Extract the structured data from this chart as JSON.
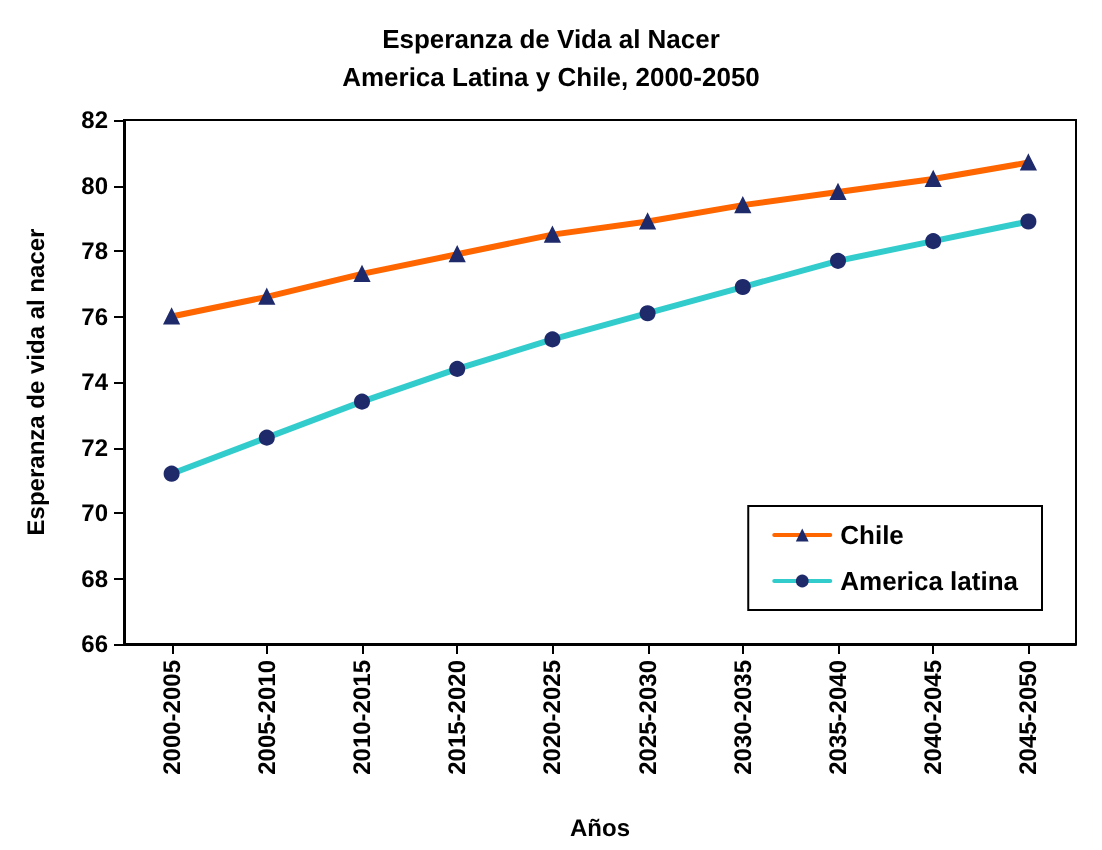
{
  "chart_data": {
    "type": "line",
    "title": "Esperanza de Vida al Nacer",
    "subtitle": "America Latina y Chile, 2000-2050",
    "xlabel": "Años",
    "ylabel": "Esperanza de vida al nacer",
    "categories": [
      "2000-2005",
      "2005-2010",
      "2010-2015",
      "2015-2020",
      "2020-2025",
      "2025-2030",
      "2030-2035",
      "2035-2040",
      "2040-2045",
      "2045-2050"
    ],
    "series": [
      {
        "name": "Chile",
        "color": "#ff6600",
        "marker": "triangle",
        "values": [
          76.0,
          76.6,
          77.3,
          77.9,
          78.5,
          78.9,
          79.4,
          79.8,
          80.2,
          80.7
        ]
      },
      {
        "name": "America latina",
        "color": "#33cccc",
        "marker": "circle",
        "values": [
          71.2,
          72.3,
          73.4,
          74.4,
          75.3,
          76.1,
          76.9,
          77.7,
          78.3,
          78.9
        ]
      }
    ],
    "ylim": [
      66,
      82
    ],
    "yticks": [
      66,
      68,
      70,
      72,
      74,
      76,
      78,
      80,
      82
    ],
    "grid": false,
    "legend": "bottom right",
    "line_style": "solid"
  }
}
